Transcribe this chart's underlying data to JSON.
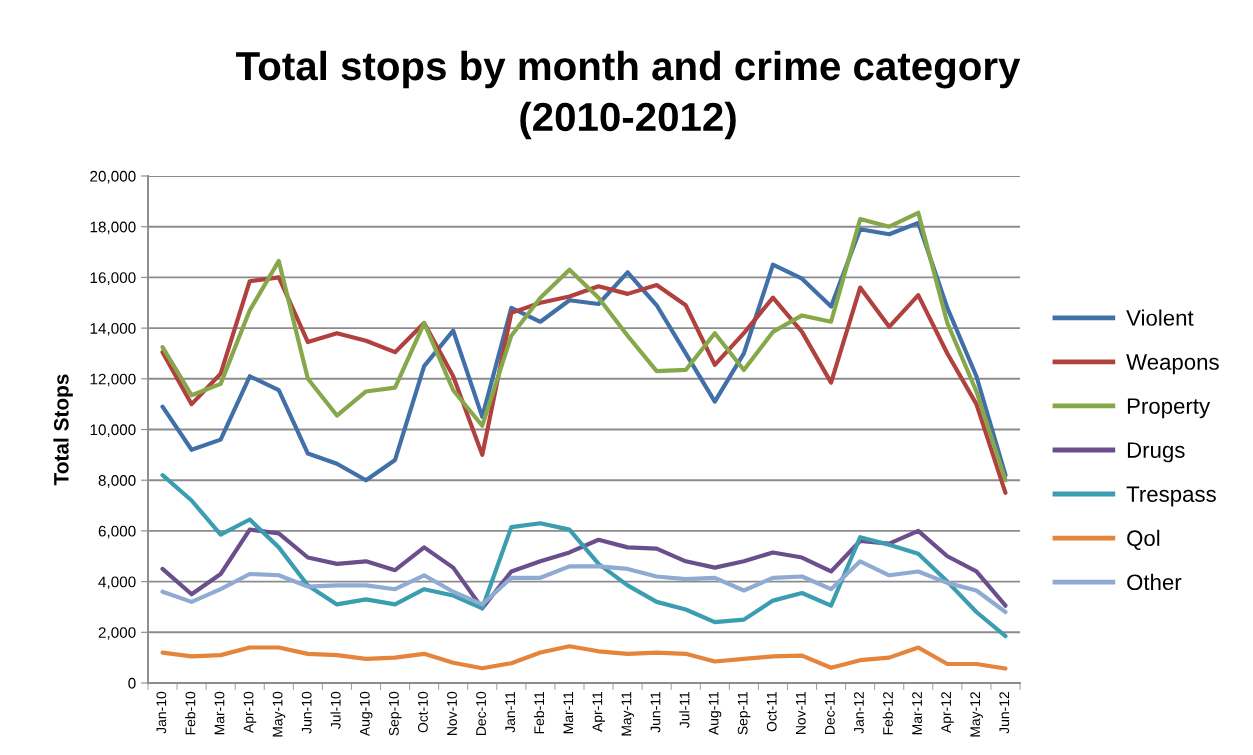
{
  "chart_data": {
    "type": "line",
    "title": "Total stops by month and crime category\n(2010-2012)",
    "ylabel": "Total Stops",
    "categories": [
      "Jan-10",
      "Feb-10",
      "Mar-10",
      "Apr-10",
      "May-10",
      "Jun-10",
      "Jul-10",
      "Aug-10",
      "Sep-10",
      "Oct-10",
      "Nov-10",
      "Dec-10",
      "Jan-11",
      "Feb-11",
      "Mar-11",
      "Apr-11",
      "May-11",
      "Jun-11",
      "Jul-11",
      "Aug-11",
      "Sep-11",
      "Oct-11",
      "Nov-11",
      "Dec-11",
      "Jan-12",
      "Feb-12",
      "Mar-12",
      "Apr-12",
      "May-12",
      "Jun-12"
    ],
    "series": [
      {
        "name": "Violent",
        "color": "#4170a8",
        "values": [
          10900,
          9200,
          9600,
          12100,
          11550,
          9050,
          8650,
          8000,
          8800,
          12500,
          13900,
          10500,
          14800,
          14250,
          15100,
          14950,
          16200,
          14900,
          13000,
          11100,
          13000,
          16500,
          15950,
          14850,
          17900,
          17700,
          18150,
          14800,
          12100,
          8200
        ]
      },
      {
        "name": "Weapons",
        "color": "#b0413e",
        "values": [
          13050,
          11000,
          12200,
          15850,
          16000,
          13450,
          13800,
          13500,
          13050,
          14200,
          12100,
          9000,
          14600,
          15000,
          15250,
          15650,
          15350,
          15700,
          14900,
          12550,
          13800,
          15200,
          13850,
          11850,
          15600,
          14050,
          15300,
          13000,
          11000,
          7500
        ]
      },
      {
        "name": "Property",
        "color": "#86a84a",
        "values": [
          13250,
          11350,
          11800,
          14700,
          16650,
          12000,
          10550,
          11500,
          11650,
          14200,
          11550,
          10150,
          13700,
          15200,
          16300,
          15200,
          13700,
          12300,
          12350,
          13800,
          12350,
          13850,
          14500,
          14250,
          18300,
          18000,
          18550,
          14200,
          11500,
          8000
        ]
      },
      {
        "name": "Drugs",
        "color": "#6a4f8c",
        "values": [
          4500,
          3500,
          4300,
          6050,
          5900,
          4950,
          4700,
          4800,
          4450,
          5350,
          4550,
          2950,
          4400,
          4800,
          5150,
          5650,
          5350,
          5300,
          4800,
          4550,
          4800,
          5150,
          4950,
          4400,
          5600,
          5500,
          6000,
          5000,
          4400,
          3050
        ]
      },
      {
        "name": "Trespass",
        "color": "#3a9db0",
        "values": [
          8200,
          7200,
          5850,
          6450,
          5350,
          3850,
          3100,
          3300,
          3100,
          3700,
          3450,
          2950,
          6150,
          6300,
          6050,
          4700,
          3850,
          3200,
          2900,
          2400,
          2500,
          3250,
          3550,
          3050,
          5750,
          5450,
          5100,
          4000,
          2800,
          1850
        ]
      },
      {
        "name": "Qol",
        "color": "#e5843b",
        "values": [
          1200,
          1050,
          1100,
          1400,
          1400,
          1150,
          1100,
          950,
          1000,
          1150,
          800,
          580,
          780,
          1200,
          1450,
          1250,
          1150,
          1200,
          1150,
          850,
          950,
          1050,
          1080,
          600,
          900,
          1000,
          1400,
          750,
          750,
          570
        ]
      },
      {
        "name": "Other",
        "color": "#8faad3",
        "values": [
          3600,
          3200,
          3700,
          4300,
          4250,
          3800,
          3850,
          3850,
          3700,
          4250,
          3600,
          3100,
          4150,
          4150,
          4600,
          4600,
          4500,
          4200,
          4100,
          4150,
          3650,
          4150,
          4200,
          3700,
          4800,
          4250,
          4400,
          3950,
          3650,
          2800
        ]
      }
    ],
    "ylim": [
      0,
      20000
    ],
    "yticks": [
      0,
      {
        "value": 2000,
        "label": "2,000"
      },
      {
        "value": 4000,
        "label": "4,000"
      },
      {
        "value": 6000,
        "label": "6,000"
      },
      {
        "value": 8000,
        "label": "8,000"
      },
      {
        "value": 10000,
        "label": "10,000"
      },
      {
        "value": 12000,
        "label": "12,000"
      },
      {
        "value": 14000,
        "label": "14,000"
      },
      {
        "value": 16000,
        "label": "16,000"
      },
      {
        "value": 18000,
        "label": "18,000"
      },
      {
        "value": 20000,
        "label": "20,000"
      }
    ],
    "grid": "y",
    "legend": "right",
    "marker": "none",
    "line_style": "solid"
  }
}
